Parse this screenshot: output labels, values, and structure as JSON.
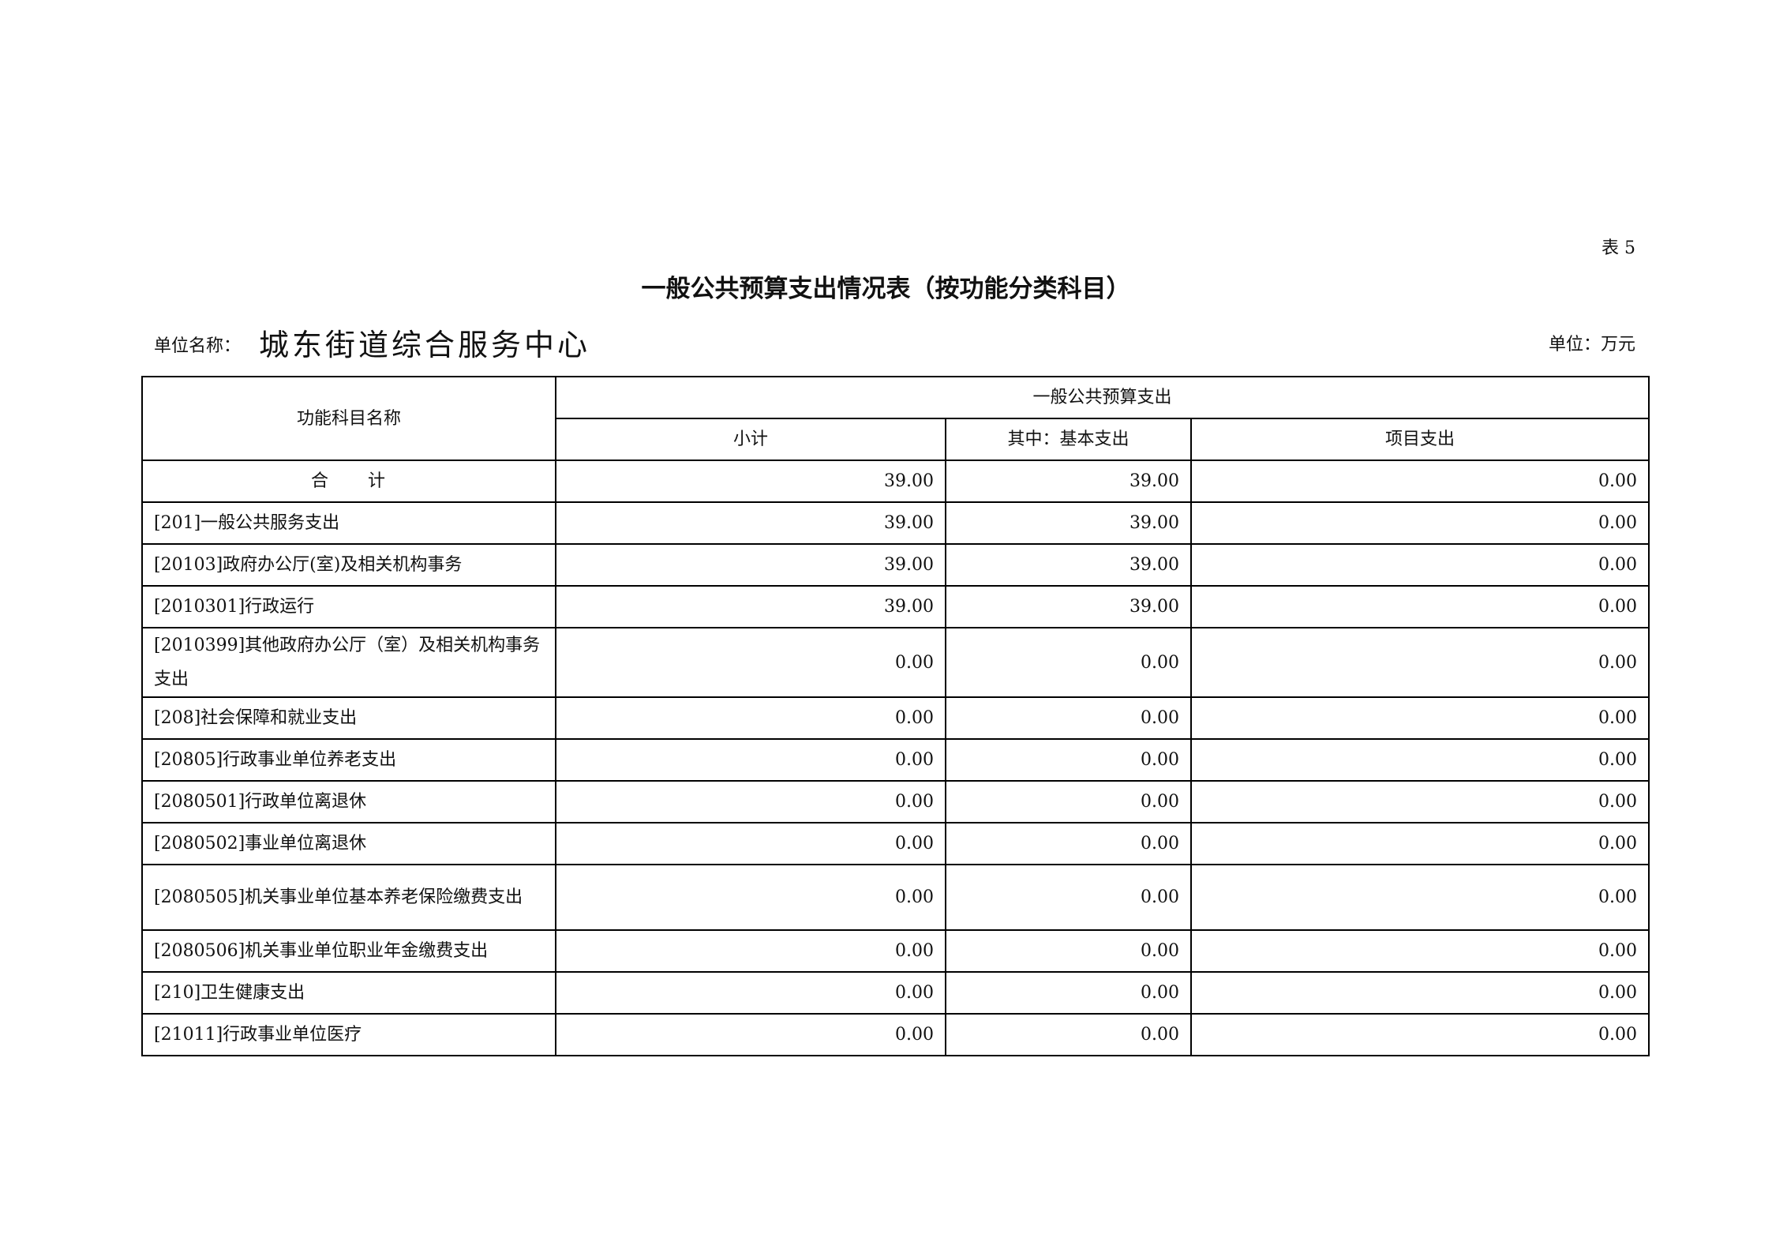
{
  "table_no": "表 5",
  "title": "一般公共预算支出情况表（按功能分类科目）",
  "unit_label": "单位名称：",
  "unit_name": "城东街道综合服务中心",
  "currency_unit": "单位：万元",
  "headers": {
    "name": "功能科目名称",
    "group": "一般公共预算支出",
    "subtotal": "小计",
    "basic": "其中：基本支出",
    "project": "项目支出"
  },
  "rows": [
    {
      "name": "合　　计",
      "subtotal": "39.00",
      "basic": "39.00",
      "project": "0.00"
    },
    {
      "name": "[201]一般公共服务支出",
      "subtotal": "39.00",
      "basic": "39.00",
      "project": "0.00"
    },
    {
      "name": "[20103]政府办公厅(室)及相关机构事务",
      "subtotal": "39.00",
      "basic": "39.00",
      "project": "0.00"
    },
    {
      "name": "[2010301]行政运行",
      "subtotal": "39.00",
      "basic": "39.00",
      "project": "0.00"
    },
    {
      "name": "[2010399]其他政府办公厅（室）及相关机构事务支出",
      "subtotal": "0.00",
      "basic": "0.00",
      "project": "0.00"
    },
    {
      "name": "[208]社会保障和就业支出",
      "subtotal": "0.00",
      "basic": "0.00",
      "project": "0.00"
    },
    {
      "name": "[20805]行政事业单位养老支出",
      "subtotal": "0.00",
      "basic": "0.00",
      "project": "0.00"
    },
    {
      "name": "[2080501]行政单位离退休",
      "subtotal": "0.00",
      "basic": "0.00",
      "project": "0.00"
    },
    {
      "name": "[2080502]事业单位离退休",
      "subtotal": "0.00",
      "basic": "0.00",
      "project": "0.00"
    },
    {
      "name": "[2080505]机关事业单位基本养老保险缴费支出",
      "subtotal": "0.00",
      "basic": "0.00",
      "project": "0.00"
    },
    {
      "name": "[2080506]机关事业单位职业年金缴费支出",
      "subtotal": "0.00",
      "basic": "0.00",
      "project": "0.00"
    },
    {
      "name": "[210]卫生健康支出",
      "subtotal": "0.00",
      "basic": "0.00",
      "project": "0.00"
    },
    {
      "name": "[21011]行政事业单位医疗",
      "subtotal": "0.00",
      "basic": "0.00",
      "project": "0.00"
    }
  ]
}
